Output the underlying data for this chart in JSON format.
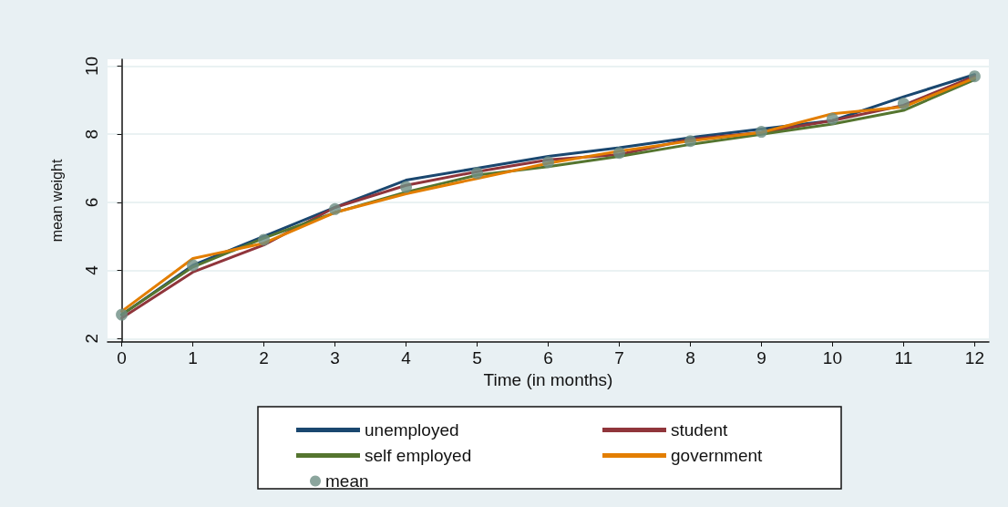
{
  "chart_data": {
    "type": "line",
    "xlabel": "Time (in months)",
    "ylabel": "mean weight",
    "x": [
      0,
      1,
      2,
      3,
      4,
      5,
      6,
      7,
      8,
      9,
      10,
      11,
      12
    ],
    "series": [
      {
        "name": "unemployed",
        "color": "#1a476f",
        "values": [
          2.7,
          4.15,
          5.0,
          5.85,
          6.65,
          7.0,
          7.35,
          7.6,
          7.9,
          8.15,
          8.4,
          9.1,
          9.75
        ]
      },
      {
        "name": "student",
        "color": "#90353b",
        "values": [
          2.6,
          3.95,
          4.75,
          5.85,
          6.5,
          6.9,
          7.25,
          7.4,
          7.85,
          8.05,
          8.4,
          8.85,
          9.7
        ]
      },
      {
        "name": "self employed",
        "color": "#55752f",
        "values": [
          2.7,
          4.1,
          4.95,
          5.7,
          6.3,
          6.8,
          7.05,
          7.35,
          7.7,
          8.0,
          8.3,
          8.7,
          9.6
        ]
      },
      {
        "name": "government",
        "color": "#e37e00",
        "values": [
          2.8,
          4.35,
          4.8,
          5.7,
          6.25,
          6.7,
          7.15,
          7.5,
          7.8,
          8.05,
          8.6,
          8.8,
          9.65
        ]
      },
      {
        "name": "mean",
        "type": "scatter",
        "marker": "circle",
        "color": "#6e8e84",
        "values": [
          2.7,
          4.15,
          4.9,
          5.8,
          6.45,
          6.86,
          7.18,
          7.45,
          7.8,
          8.07,
          8.45,
          8.9,
          9.7
        ]
      }
    ],
    "xlim": [
      -0.2,
      12.2
    ],
    "xticks": [
      0,
      1,
      2,
      3,
      4,
      5,
      6,
      7,
      8,
      9,
      10,
      11,
      12
    ],
    "ylim": [
      1.9,
      10.2
    ],
    "yticks": [
      2,
      4,
      6,
      8,
      10
    ],
    "grid": "y",
    "legend": "bottom",
    "marker": "none",
    "line_style": "solid"
  }
}
